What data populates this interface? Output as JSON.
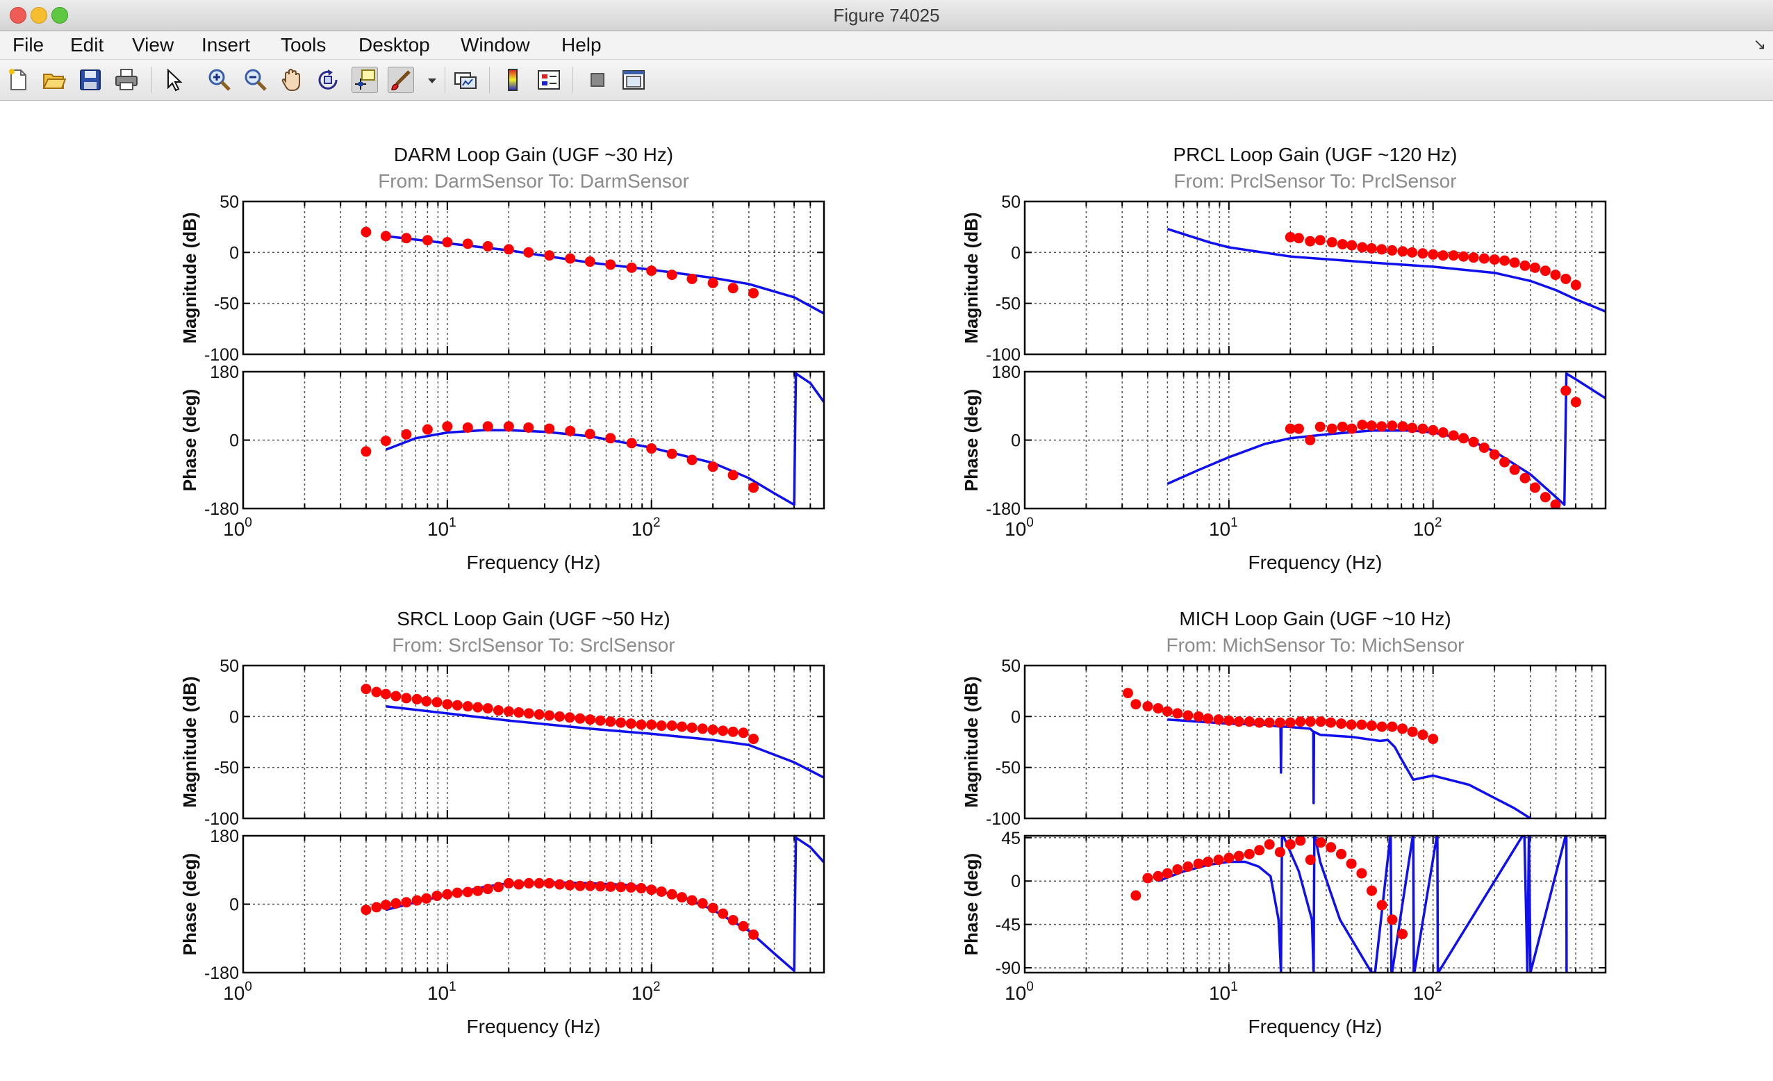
{
  "window": {
    "title": "Figure 74025"
  },
  "menu": [
    "File",
    "Edit",
    "View",
    "Insert",
    "Tools",
    "Desktop",
    "Window",
    "Help"
  ],
  "menu_corner_glyph": "↘",
  "toolbar_icons": [
    "new-figure-icon",
    "open-file-icon",
    "save-icon",
    "print-icon",
    "pointer-icon",
    "zoom-in-icon",
    "zoom-out-icon",
    "pan-hand-icon",
    "rotate-3d-icon",
    "data-cursor-icon",
    "brush-icon",
    "dropdown-arrow-icon",
    "link-plot-icon",
    "colorbar-icon",
    "legend-icon",
    "hide-plot-tools-icon",
    "show-plot-tools-icon"
  ],
  "colors": {
    "model_line": "#1010ee",
    "measurement_dots": "#ff0000",
    "grid": "#555555"
  },
  "chart_data": [
    {
      "type": "line",
      "title": "DARM Loop Gain (UGF ~30 Hz)",
      "subtitle": "From: DarmSensor  To: DarmSensor",
      "xlabel": "Frequency  (Hz)",
      "xscale": "log",
      "xlim": [
        1,
        700
      ],
      "x_tick_labels": [
        "10^0",
        "10^1",
        "10^2"
      ],
      "magnitude": {
        "ylabel": "Magnitude (dB)",
        "ylim": [
          -100,
          50
        ],
        "yticks": [
          "50",
          "0",
          "-50",
          "-100"
        ],
        "series": [
          {
            "kind": "line",
            "x": [
              5,
              10,
              20,
              50,
              100,
              200,
              300,
              500,
              700
            ],
            "y": [
              16,
              9,
              2,
              -10,
              -17,
              -25,
              -31,
              -44,
              -60
            ]
          },
          {
            "kind": "points",
            "x": [
              4,
              5,
              6.3,
              8,
              10,
              12.6,
              15.8,
              20,
              25,
              31.6,
              40,
              50,
              63,
              80,
              100,
              126,
              158,
              200,
              251,
              316
            ],
            "y": [
              20,
              16,
              14,
              12,
              10,
              8.5,
              6,
              3,
              0,
              -3,
              -6,
              -9,
              -12,
              -15,
              -18,
              -22,
              -26,
              -30,
              -35,
              -40
            ]
          }
        ]
      },
      "phase": {
        "ylabel": "Phase (deg)",
        "ylim": [
          -180,
          180
        ],
        "yticks": [
          "180",
          "0",
          "-180"
        ],
        "series": [
          {
            "kind": "line",
            "x": [
              5,
              7,
              10,
              15,
              20,
              30,
              50,
              100,
              200,
              300,
              400,
              500,
              510,
              600,
              700
            ],
            "y": [
              -25,
              5,
              20,
              26,
              26,
              22,
              10,
              -20,
              -60,
              -100,
              -140,
              -170,
              175,
              150,
              100
            ]
          },
          {
            "kind": "points",
            "x": [
              4,
              5,
              6.3,
              8,
              10,
              12.6,
              15.8,
              20,
              25,
              31.6,
              40,
              50,
              63,
              80,
              100,
              126,
              158,
              200,
              251,
              316
            ],
            "y": [
              -30,
              -2,
              15,
              28,
              36,
              33,
              36,
              36,
              33,
              30,
              24,
              16,
              5,
              -8,
              -22,
              -36,
              -52,
              -70,
              -92,
              -125
            ]
          }
        ]
      }
    },
    {
      "type": "line",
      "title": "PRCL Loop Gain (UGF ~120 Hz)",
      "subtitle": "From: PrclSensor  To: PrclSensor",
      "xlabel": "Frequency  (Hz)",
      "xscale": "log",
      "xlim": [
        1,
        700
      ],
      "x_tick_labels": [
        "10^0",
        "10^1",
        "10^2"
      ],
      "magnitude": {
        "ylabel": "Magnitude (dB)",
        "ylim": [
          -100,
          50
        ],
        "yticks": [
          "50",
          "0",
          "-50",
          "-100"
        ],
        "series": [
          {
            "kind": "line",
            "x": [
              5,
              8,
              10,
              20,
              50,
              100,
              200,
              300,
              400,
              500,
              700
            ],
            "y": [
              23,
              10,
              5,
              -4,
              -10,
              -14,
              -20,
              -28,
              -37,
              -46,
              -58
            ]
          },
          {
            "kind": "points",
            "x": [
              20,
              22,
              25,
              28,
              32,
              36,
              40,
              45,
              50,
              56,
              63,
              71,
              79,
              89,
              100,
              112,
              126,
              141,
              158,
              178,
              200,
              224,
              251,
              282,
              316,
              355,
              398,
              447,
              501
            ],
            "y": [
              15,
              14,
              11,
              12,
              10,
              8,
              7,
              5,
              4,
              3,
              2,
              1,
              0,
              -1,
              -2,
              -3,
              -3,
              -4,
              -5,
              -6,
              -7,
              -8,
              -10,
              -13,
              -15,
              -18,
              -22,
              -26,
              -32
            ]
          }
        ]
      },
      "phase": {
        "ylabel": "Phase (deg)",
        "ylim": [
          -180,
          180
        ],
        "yticks": [
          "180",
          "0",
          "-180"
        ],
        "series": [
          {
            "kind": "line",
            "x": [
              5,
              7,
              10,
              15,
              20,
              30,
              50,
              80,
              100,
              150,
              200,
              300,
              400,
              440,
              450,
              500,
              700
            ],
            "y": [
              -115,
              -80,
              -45,
              -10,
              5,
              15,
              25,
              25,
              20,
              0,
              -30,
              -90,
              -150,
              -170,
              175,
              160,
              110
            ]
          },
          {
            "kind": "points",
            "x": [
              20,
              22,
              25,
              28,
              32,
              36,
              40,
              45,
              50,
              56,
              63,
              71,
              79,
              89,
              100,
              112,
              126,
              141,
              158,
              178,
              200,
              224,
              251,
              282,
              316,
              355,
              398,
              447,
              501
            ],
            "y": [
              30,
              30,
              0,
              35,
              30,
              35,
              30,
              40,
              38,
              36,
              38,
              36,
              32,
              30,
              26,
              20,
              12,
              5,
              -5,
              -20,
              -38,
              -58,
              -78,
              -100,
              -125,
              -150,
              -170,
              130,
              100
            ]
          }
        ]
      }
    },
    {
      "type": "line",
      "title": "SRCL Loop Gain (UGF ~50 Hz)",
      "subtitle": "From: SrclSensor  To: SrclSensor",
      "xlabel": "Frequency  (Hz)",
      "xscale": "log",
      "xlim": [
        1,
        700
      ],
      "x_tick_labels": [
        "10^0",
        "10^1",
        "10^2"
      ],
      "magnitude": {
        "ylabel": "Magnitude (dB)",
        "ylim": [
          -100,
          50
        ],
        "yticks": [
          "50",
          "0",
          "-50",
          "-100"
        ],
        "series": [
          {
            "kind": "line",
            "x": [
              5,
              10,
              20,
              50,
              100,
              200,
              300,
              500,
              700
            ],
            "y": [
              10,
              3,
              -4,
              -12,
              -17,
              -23,
              -28,
              -45,
              -60
            ]
          },
          {
            "kind": "points",
            "x": [
              4,
              4.5,
              5,
              5.6,
              6.3,
              7.1,
              7.9,
              8.9,
              10,
              11.2,
              12.6,
              14.1,
              15.8,
              17.8,
              20,
              22.4,
              25.1,
              28.2,
              31.6,
              35.5,
              39.8,
              44.7,
              50.1,
              56.2,
              63.1,
              70.8,
              79.4,
              89.1,
              100,
              112,
              126,
              141,
              158,
              178,
              200,
              224,
              251,
              282,
              316
            ],
            "y": [
              27,
              24,
              22,
              20,
              18,
              17,
              15,
              14,
              12,
              11,
              10,
              9,
              8,
              6,
              5,
              4,
              3,
              2,
              1,
              0,
              -1,
              -2,
              -3,
              -4,
              -5,
              -6,
              -7,
              -8,
              -8,
              -9,
              -9,
              -10,
              -11,
              -12,
              -13,
              -14,
              -15,
              -16,
              -22
            ]
          }
        ]
      },
      "phase": {
        "ylabel": "Phase (deg)",
        "ylim": [
          -180,
          180
        ],
        "yticks": [
          "180",
          "0",
          "-180"
        ],
        "series": [
          {
            "kind": "line",
            "x": [
              5,
              7,
              10,
              15,
              20,
              30,
              50,
              80,
              100,
              150,
              200,
              300,
              400,
              500,
              510,
              600,
              700
            ],
            "y": [
              -15,
              5,
              25,
              45,
              55,
              58,
              55,
              50,
              40,
              15,
              -15,
              -70,
              -130,
              -175,
              175,
              150,
              110
            ]
          },
          {
            "kind": "points",
            "x": [
              4,
              4.5,
              5,
              5.6,
              6.3,
              7.1,
              7.9,
              8.9,
              10,
              11.2,
              12.6,
              14.1,
              15.8,
              17.8,
              20,
              22.4,
              25.1,
              28.2,
              31.6,
              35.5,
              39.8,
              44.7,
              50.1,
              56.2,
              63.1,
              70.8,
              79.4,
              89.1,
              100,
              112,
              126,
              141,
              158,
              178,
              200,
              224,
              251,
              282,
              316
            ],
            "y": [
              -15,
              -8,
              -2,
              2,
              5,
              10,
              15,
              22,
              26,
              30,
              32,
              35,
              40,
              45,
              55,
              52,
              55,
              55,
              55,
              52,
              50,
              48,
              48,
              47,
              46,
              45,
              44,
              42,
              38,
              33,
              26,
              18,
              10,
              2,
              -10,
              -25,
              -42,
              -58,
              -80
            ]
          }
        ]
      }
    },
    {
      "type": "line",
      "title": "MICH Loop Gain (UGF ~10 Hz)",
      "subtitle": "From: MichSensor  To: MichSensor",
      "xlabel": "Frequency  (Hz)",
      "xscale": "log",
      "xlim": [
        1,
        700
      ],
      "x_tick_labels": [
        "10^0",
        "10^1",
        "10^2"
      ],
      "magnitude": {
        "ylabel": "Magnitude (dB)",
        "ylim": [
          -100,
          50
        ],
        "yticks": [
          "50",
          "0",
          "-50",
          "-100"
        ],
        "series": [
          {
            "kind": "line",
            "x": [
              5,
              10,
              15,
              17.9,
              18,
              18.1,
              19,
              25,
              25.9,
              26,
              26.1,
              28,
              40,
              55,
              60,
              65,
              70,
              80,
              100,
              150,
              250,
              300
            ],
            "y": [
              -3,
              -7,
              -8,
              -10,
              -55,
              -10,
              -10,
              -12,
              -15,
              -85,
              -15,
              -18,
              -20,
              -24,
              -23,
              -30,
              -42,
              -62,
              -58,
              -67,
              -90,
              -100
            ]
          },
          {
            "kind": "points",
            "x": [
              3.2,
              3.5,
              4,
              4.5,
              5,
              5.6,
              6.3,
              7.1,
              7.9,
              8.9,
              10,
              11.2,
              12.6,
              14.1,
              15.8,
              17.8,
              20,
              22.4,
              25.1,
              28.2,
              31.6,
              35.5,
              39.8,
              44.7,
              50.1,
              56.2,
              63.1,
              70.8,
              79.4,
              89.1,
              100
            ],
            "y": [
              23,
              12,
              10,
              8,
              5,
              3,
              1,
              0,
              -2,
              -3,
              -4,
              -5,
              -5,
              -6,
              -6,
              -6,
              -6,
              -5,
              -5,
              -5,
              -6,
              -7,
              -8,
              -8,
              -9,
              -10,
              -10,
              -12,
              -15,
              -18,
              -22
            ]
          }
        ]
      },
      "phase": {
        "ylabel": "Phase (deg)",
        "ylim": [
          -95,
          47
        ],
        "yticks": [
          "45",
          "0",
          "-45",
          "-90"
        ],
        "series": [
          {
            "kind": "line",
            "x": [
              4.5,
              6,
              8,
              10,
              12,
              14,
              16,
              17.5,
              18,
              18.2,
              22,
              25.5,
              26,
              26.2,
              28,
              35,
              50,
              52,
              62,
              62.5,
              63,
              80,
              80.5,
              81,
              105,
              105.5,
              106,
              280,
              290,
              295,
              300,
              450,
              451
            ],
            "y": [
              0,
              10,
              17,
              20,
              20,
              15,
              5,
              -40,
              -95,
              50,
              10,
              -40,
              -95,
              50,
              20,
              -40,
              -95,
              -95,
              50,
              -95,
              -95,
              50,
              -95,
              -95,
              50,
              -95,
              -95,
              50,
              -95,
              50,
              -95,
              50,
              -95
            ]
          },
          {
            "kind": "points",
            "x": [
              3.5,
              4,
              4.5,
              5,
              5.6,
              6.3,
              7.1,
              7.9,
              8.9,
              10,
              11.2,
              12.6,
              14.1,
              15.8,
              17.8,
              20,
              22.4,
              25.1,
              28.2,
              31.6,
              35.5,
              39.8,
              44.7,
              50.1,
              56.2,
              63.1,
              70.8
            ],
            "y": [
              -15,
              3,
              5,
              8,
              12,
              15,
              18,
              20,
              22,
              24,
              26,
              28,
              32,
              38,
              30,
              38,
              42,
              22,
              40,
              35,
              28,
              18,
              8,
              -10,
              -25,
              -40,
              -55
            ]
          }
        ]
      }
    }
  ]
}
